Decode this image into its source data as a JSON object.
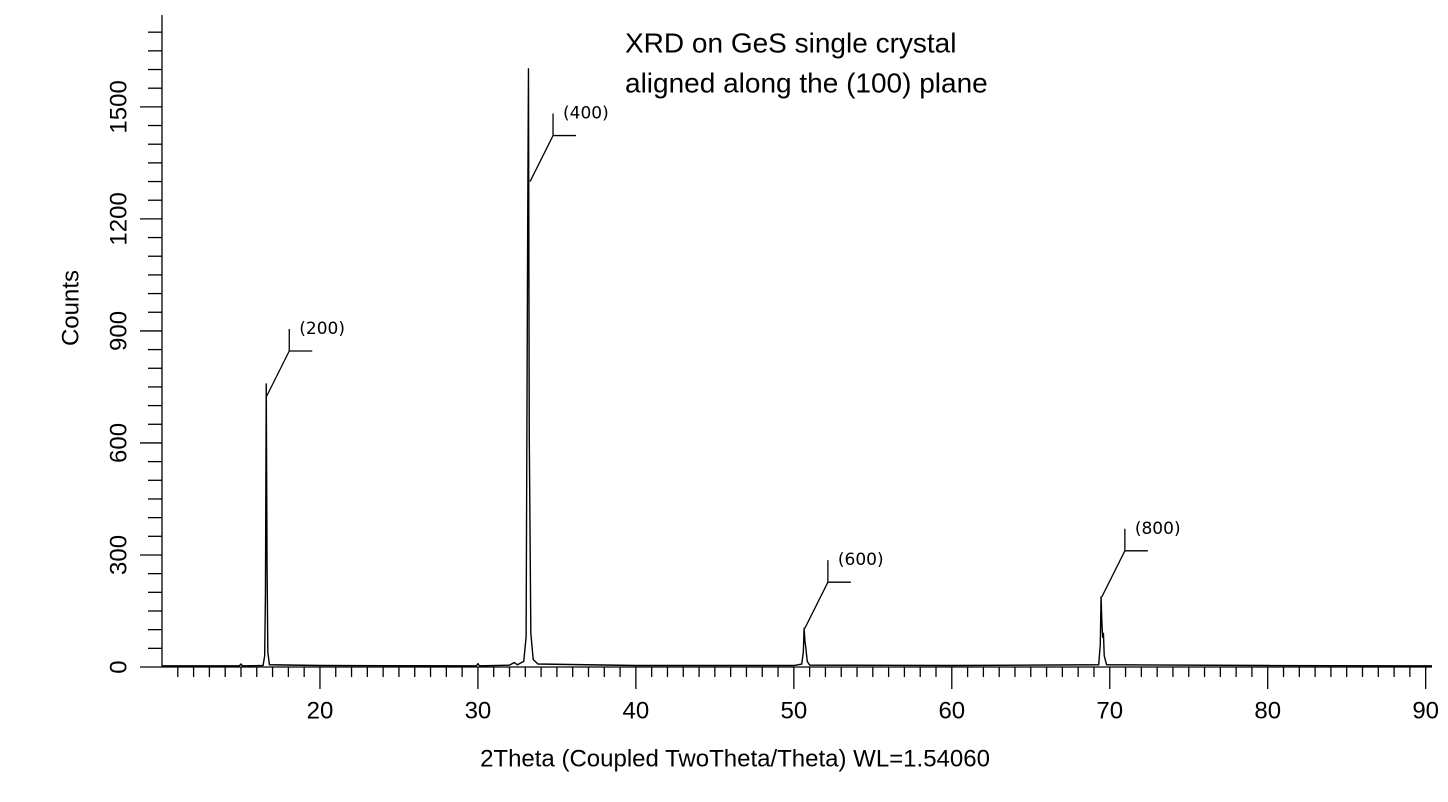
{
  "chart_data": {
    "type": "line",
    "title": [
      "XRD on GeS single crystal",
      "aligned along the (100) plane"
    ],
    "xlabel": "2Theta (Coupled TwoTheta/Theta) WL=1.54060",
    "ylabel": "Counts",
    "color": "#000000",
    "x": [
      10,
      14.9,
      15.0,
      15.1,
      16.4,
      16.5,
      16.55,
      16.6,
      16.65,
      16.7,
      16.8,
      20,
      29.9,
      30,
      30.1,
      32,
      32.3,
      32.5,
      32.9,
      33.05,
      33.15,
      33.2,
      33.25,
      33.35,
      33.5,
      33.8,
      40,
      50,
      50.5,
      50.6,
      50.65,
      50.7,
      50.75,
      50.85,
      51,
      60,
      69.3,
      69.4,
      69.45,
      69.5,
      69.55,
      69.6,
      69.65,
      69.8,
      80,
      90.4
    ],
    "values": [
      3,
      3,
      8,
      3,
      4,
      30,
      200,
      758,
      280,
      40,
      6,
      4,
      3,
      9,
      3,
      5,
      12,
      6,
      15,
      80,
      1180,
      1602,
      620,
      90,
      20,
      8,
      4,
      4,
      8,
      40,
      104,
      70,
      55,
      15,
      5,
      4,
      6,
      60,
      188,
      120,
      80,
      90,
      30,
      6,
      4,
      3
    ],
    "xlim": [
      10,
      90.4
    ],
    "ylim": [
      0,
      1746
    ],
    "xticks": [
      20,
      30,
      40,
      50,
      60,
      70,
      80,
      90
    ],
    "yticks": [
      0,
      300,
      600,
      900,
      1200,
      1500
    ],
    "xminorticks": [
      11,
      12,
      13,
      14,
      15,
      16,
      17,
      18,
      19,
      21,
      22,
      23,
      24,
      25,
      26,
      27,
      28,
      29,
      31,
      32,
      33,
      34,
      35,
      36,
      37,
      38,
      39,
      41,
      42,
      43,
      44,
      45,
      46,
      47,
      48,
      49,
      51,
      52,
      53,
      54,
      55,
      56,
      57,
      58,
      59,
      61,
      62,
      63,
      64,
      65,
      66,
      67,
      68,
      69,
      71,
      72,
      73,
      74,
      75,
      76,
      77,
      78,
      79,
      81,
      82,
      83,
      84,
      85,
      86,
      87,
      88,
      89
    ],
    "yminorticks": [
      50,
      100,
      150,
      200,
      250,
      350,
      400,
      450,
      500,
      550,
      650,
      700,
      750,
      800,
      850,
      950,
      1000,
      1050,
      1100,
      1150,
      1250,
      1300,
      1350,
      1400,
      1450,
      1550,
      1600,
      1650,
      1700
    ],
    "annotations": [
      {
        "text": "(200)",
        "x": 16.6,
        "y": 723
      },
      {
        "text": "(400)",
        "x": 33.3,
        "y": 1300
      },
      {
        "text": "(600)",
        "x": 50.7,
        "y": 104
      },
      {
        "text": "(800)",
        "x": 69.5,
        "y": 188
      }
    ]
  }
}
